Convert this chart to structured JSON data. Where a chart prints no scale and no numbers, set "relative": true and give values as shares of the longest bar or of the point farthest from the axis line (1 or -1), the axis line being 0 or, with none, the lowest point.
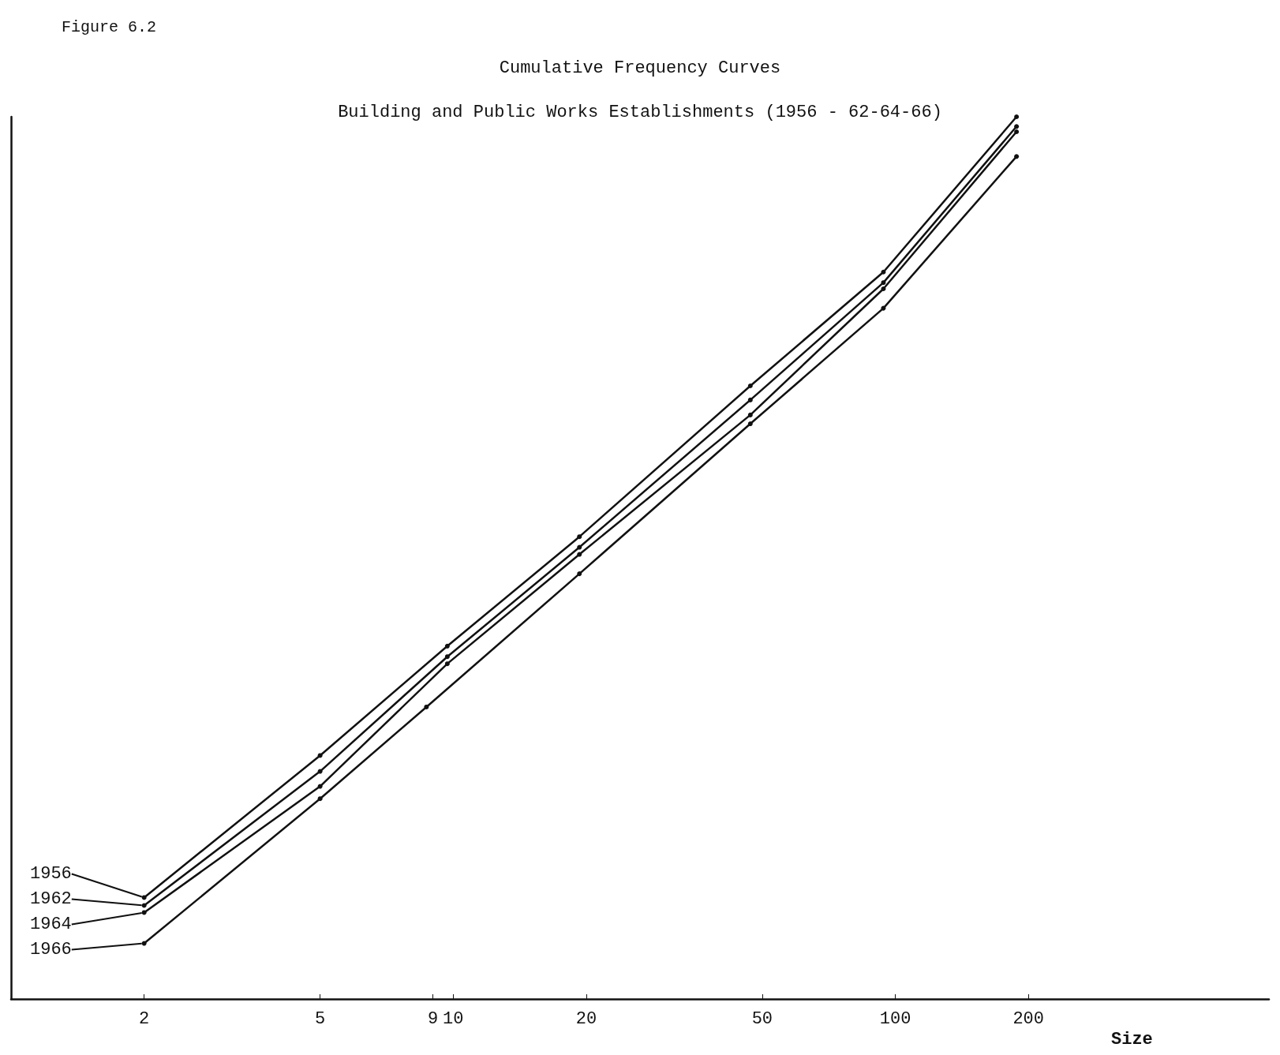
{
  "chart_data": {
    "type": "line",
    "title": "Cumulative Frequency Curves",
    "subtitle": "Building and Public Works Establishments (1956 - 62-64-66)",
    "annotations": [
      "Figure 6.2"
    ],
    "xlabel": "Size",
    "relative": true,
    "log": "x",
    "xlim": [
      1,
      700
    ],
    "xticks": [
      2,
      5,
      9,
      10,
      20,
      50,
      100,
      200
    ],
    "legend": "bottom left",
    "grid": false,
    "marker": "circle",
    "line_style": "solid",
    "series": [
      {
        "name": "1956",
        "color": "#111111",
        "x": [
          2,
          5,
          9.7,
          19.3,
          47,
          94,
          188
        ],
        "values": [
          0.115,
          0.276,
          0.4,
          0.524,
          0.695,
          0.824,
          1
        ]
      },
      {
        "name": "1962",
        "color": "#111111",
        "x": [
          2,
          5,
          9.7,
          19.3,
          47,
          94,
          188
        ],
        "values": [
          0.106,
          0.258,
          0.388,
          0.512,
          0.679,
          0.812,
          0.989
        ]
      },
      {
        "name": "1964",
        "color": "#111111",
        "x": [
          2,
          5,
          9.7,
          19.3,
          47,
          94,
          188
        ],
        "values": [
          0.098,
          0.241,
          0.38,
          0.504,
          0.662,
          0.805,
          0.983
        ]
      },
      {
        "name": "1966",
        "color": "#111111",
        "x": [
          2,
          5,
          8.7,
          19.3,
          47,
          94,
          188
        ],
        "values": [
          0.063,
          0.227,
          0.331,
          0.482,
          0.652,
          0.783,
          0.955
        ]
      }
    ]
  }
}
